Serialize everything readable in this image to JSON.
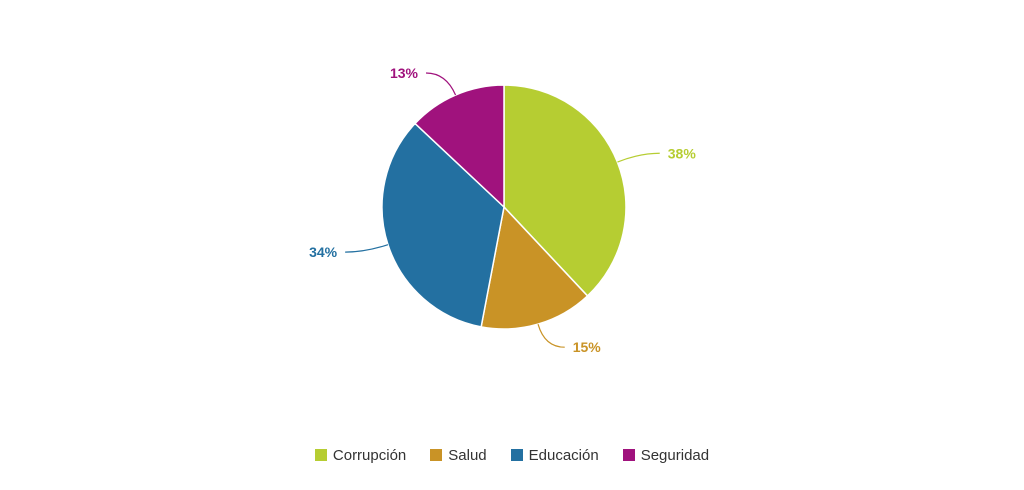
{
  "chart_data": {
    "type": "pie",
    "title": "",
    "series": [
      {
        "values": [
          38,
          15,
          34,
          13
        ]
      }
    ],
    "categories": [
      "Corrupción",
      "Salud",
      "Educación",
      "Seguridad"
    ],
    "slices": [
      {
        "label": "Corrupción",
        "value": 38,
        "value_label": "38%",
        "color": "#b6cd32"
      },
      {
        "label": "Salud",
        "value": 15,
        "value_label": "15%",
        "color": "#c99326"
      },
      {
        "label": "Educación",
        "value": 34,
        "value_label": "34%",
        "color": "#2370a1"
      },
      {
        "label": "Seguridad",
        "value": 13,
        "value_label": "13%",
        "color": "#a0127d"
      }
    ],
    "start_angle": "12 o'clock",
    "direction": "clockwise",
    "legend_position": "bottom-center"
  }
}
